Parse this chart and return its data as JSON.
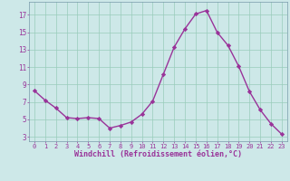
{
  "x": [
    0,
    1,
    2,
    3,
    4,
    5,
    6,
    7,
    8,
    9,
    10,
    11,
    12,
    13,
    14,
    15,
    16,
    17,
    18,
    19,
    20,
    21,
    22,
    23
  ],
  "y": [
    8.3,
    7.2,
    6.3,
    5.2,
    5.1,
    5.2,
    5.1,
    4.0,
    4.3,
    4.7,
    5.6,
    7.1,
    10.2,
    13.3,
    15.4,
    17.1,
    17.5,
    15.0,
    13.5,
    11.1,
    8.2,
    6.1,
    4.5,
    3.3
  ],
  "line_color": "#993399",
  "marker": "D",
  "markersize": 2.2,
  "linewidth": 1.0,
  "xlabel": "Windchill (Refroidissement éolien,°C)",
  "xlabel_color": "#993399",
  "xlabel_fontsize": 6.0,
  "xlim": [
    -0.5,
    23.5
  ],
  "ylim": [
    2.5,
    18.5
  ],
  "yticks": [
    3,
    5,
    7,
    9,
    11,
    13,
    15,
    17
  ],
  "xticks": [
    0,
    1,
    2,
    3,
    4,
    5,
    6,
    7,
    8,
    9,
    10,
    11,
    12,
    13,
    14,
    15,
    16,
    17,
    18,
    19,
    20,
    21,
    22,
    23
  ],
  "xtick_fontsize": 5.0,
  "ytick_fontsize": 5.5,
  "tick_color": "#993399",
  "bg_color": "#cde8e8",
  "grid_color": "#99ccbb",
  "grid_linewidth": 0.5,
  "spine_color": "#7799aa"
}
